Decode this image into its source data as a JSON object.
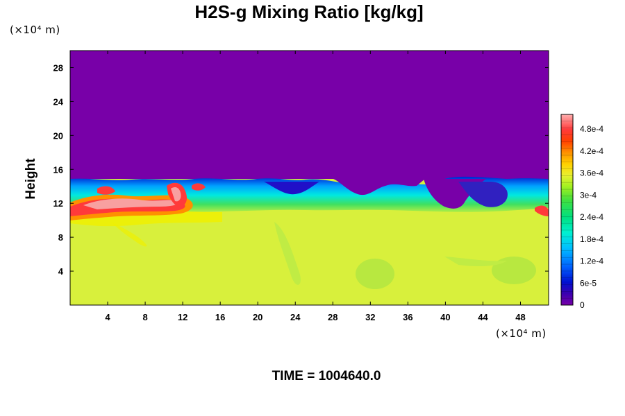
{
  "chart_data": {
    "type": "heatmap",
    "title": "H2S-g Mixing Ratio [kg/kg]",
    "ylabel": "Height",
    "xlabel": "",
    "x_unit": "(×10⁴ m)",
    "y_unit": "(×10⁴ m)",
    "x_ticks": [
      4,
      8,
      12,
      16,
      20,
      24,
      28,
      32,
      36,
      40,
      44,
      48
    ],
    "y_ticks": [
      4,
      8,
      12,
      16,
      20,
      24,
      28
    ],
    "xlim": [
      0,
      51
    ],
    "ylim": [
      0,
      30
    ],
    "colorbar": {
      "labels": [
        "0",
        "6e-5",
        "1.2e-4",
        "1.8e-4",
        "2.4e-4",
        "3e-4",
        "3.6e-4",
        "4.2e-4",
        "4.8e-4"
      ],
      "values": [
        0,
        6e-05,
        0.00012,
        0.00018,
        0.00024,
        0.0003,
        0.00036,
        0.00042,
        0.00048
      ],
      "range": [
        0,
        0.00052
      ]
    },
    "field_summary": {
      "upper_layer_value": 0,
      "lower_layer_value": 0.00033,
      "interface_height_approx": 15,
      "max_value_region": [
        2,
        13,
        11,
        10
      ]
    }
  },
  "footer": {
    "time_text": "TIME = 1004640.0"
  },
  "colors": {
    "upper": "#7800a8",
    "lower": "#d8f03c",
    "accent_red": "#ff3a3a",
    "pink": "#f8a0a0"
  }
}
